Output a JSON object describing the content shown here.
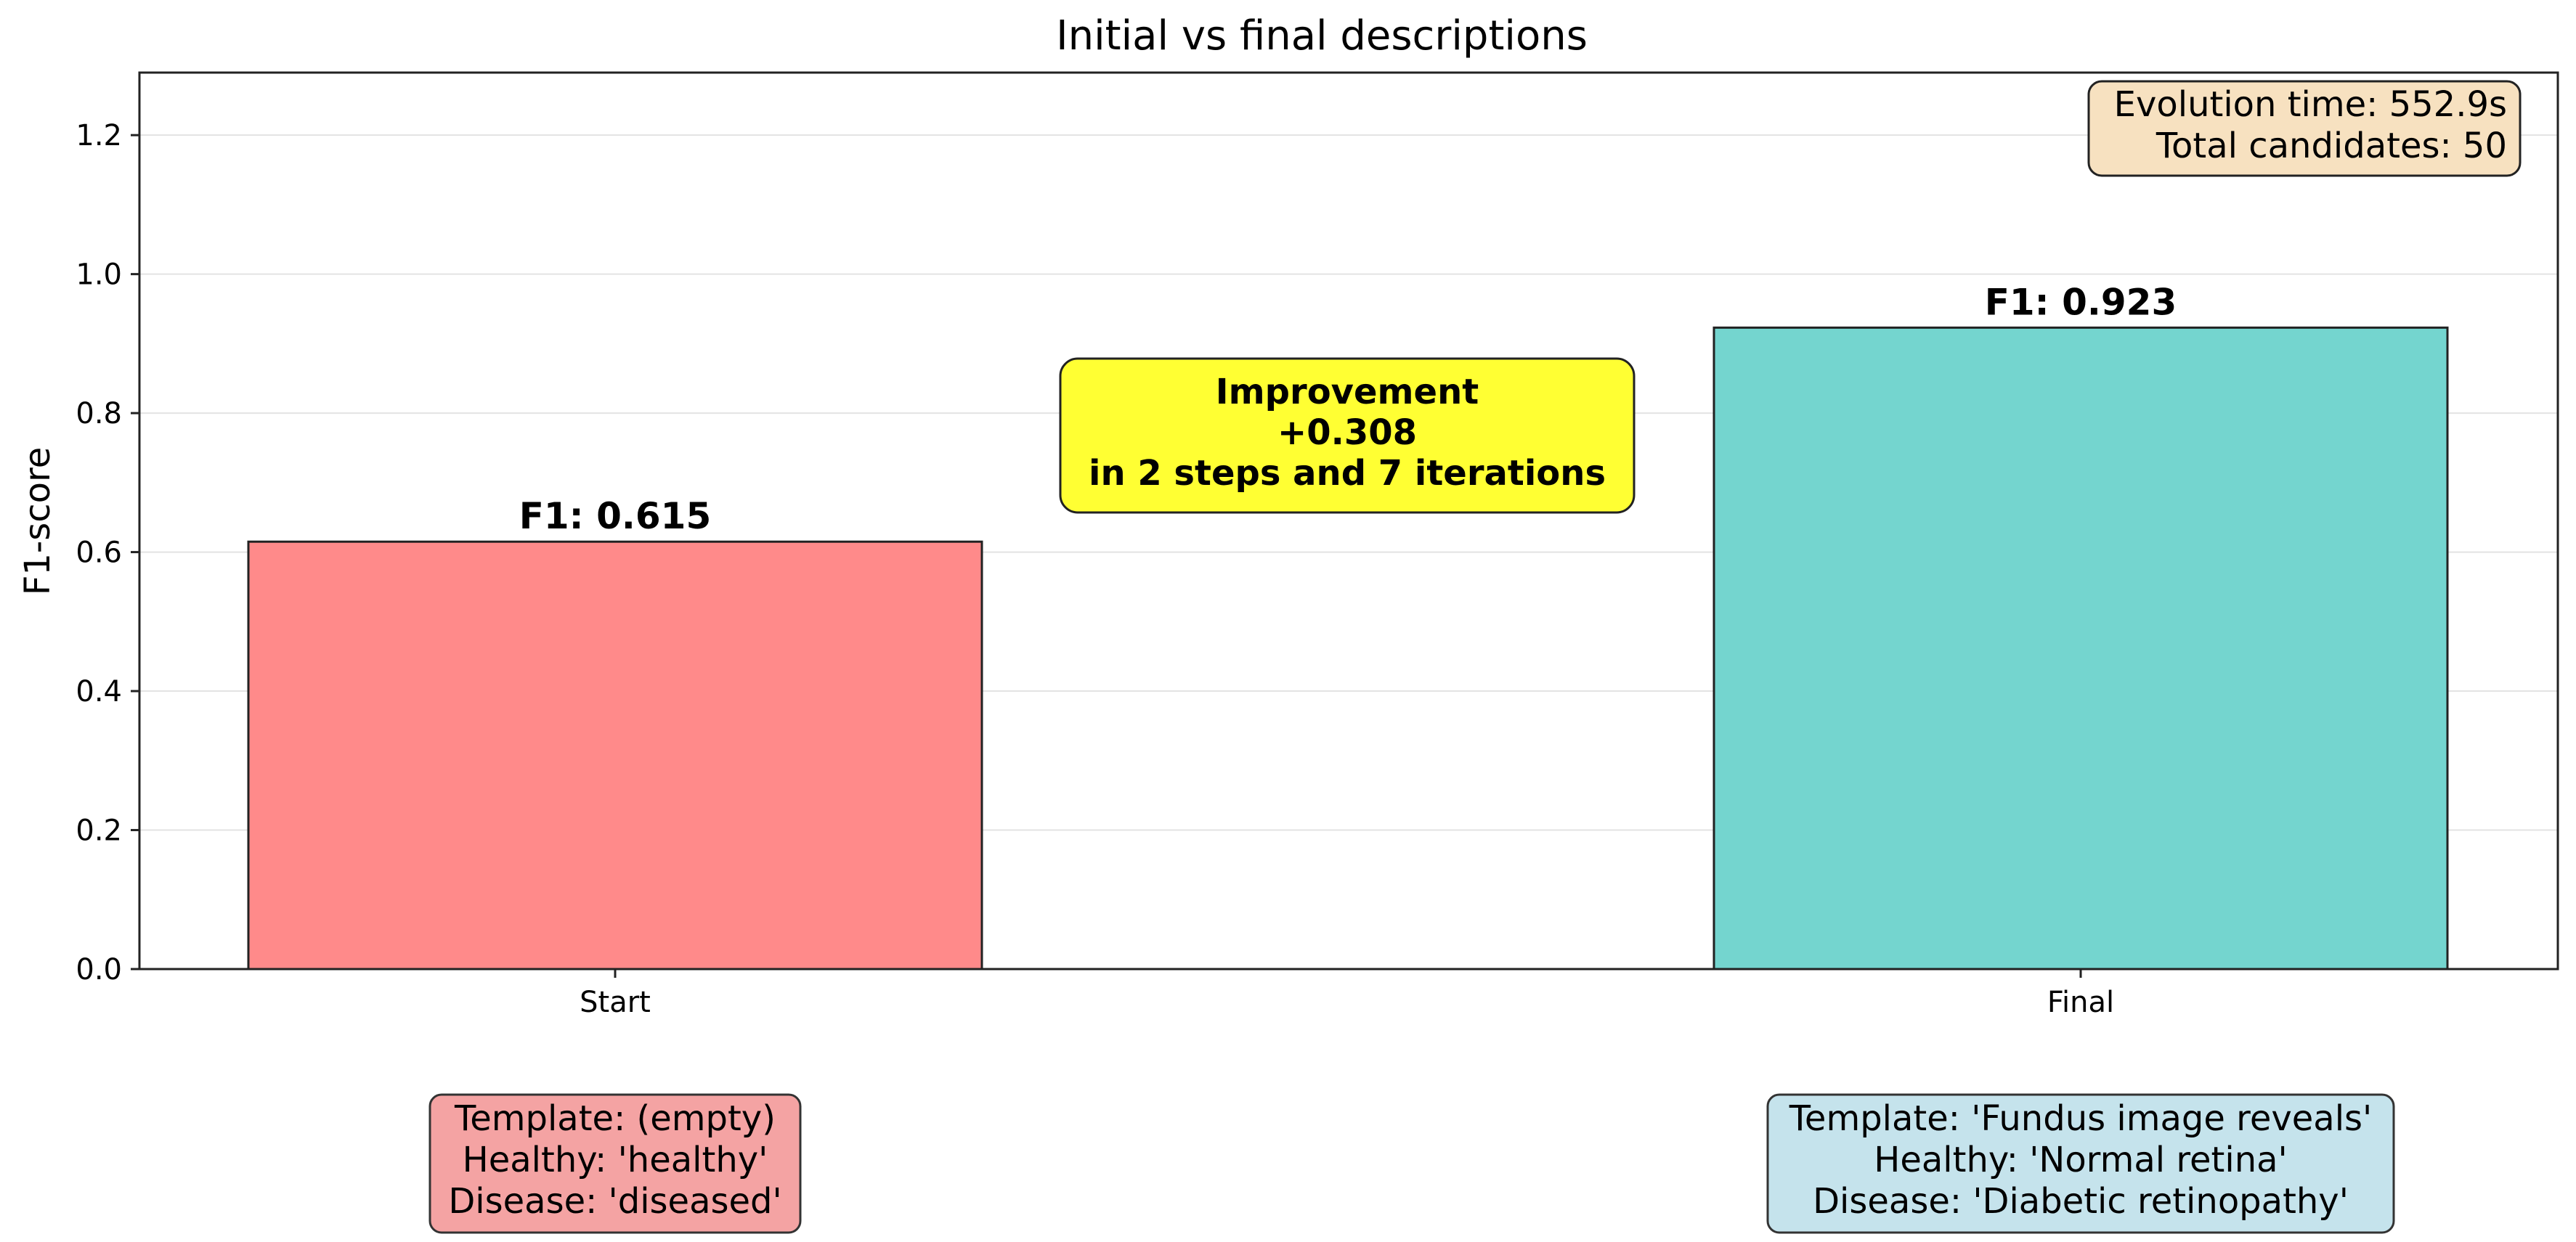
{
  "chart_data": {
    "type": "bar",
    "title": "Initial vs final descriptions",
    "xlabel": "",
    "ylabel": "F1-score",
    "ylim": [
      0,
      1.29
    ],
    "yticks": [
      0.0,
      0.2,
      0.4,
      0.6,
      0.8,
      1.0,
      1.2
    ],
    "ytick_labels": [
      "0.0",
      "0.2",
      "0.4",
      "0.6",
      "0.8",
      "1.0",
      "1.2"
    ],
    "grid": "y",
    "categories": [
      "Start",
      "Final"
    ],
    "values": [
      0.615,
      0.923
    ],
    "bar_colors": [
      "#ff8a8a",
      "#74d5cf"
    ],
    "value_labels": [
      "F1: 0.615",
      "F1: 0.923"
    ],
    "improvement_box": {
      "lines": [
        "Improvement",
        "+0.308",
        "in 2 steps and 7 iterations"
      ],
      "color": "#ffff33"
    },
    "info_box": {
      "lines": [
        "Evolution time: 552.9s",
        "Total candidates: 50"
      ],
      "color": "#f7e1c0"
    },
    "description_boxes": [
      {
        "lines": [
          "Template: (empty)",
          "Healthy: 'healthy'",
          "Disease: 'diseased'"
        ],
        "color": "#f4a3a3"
      },
      {
        "lines": [
          "Template: 'Fundus image reveals'",
          "Healthy: 'Normal retina'",
          "Disease: 'Diabetic retinopathy'"
        ],
        "color": "#c5e3ec"
      }
    ]
  }
}
